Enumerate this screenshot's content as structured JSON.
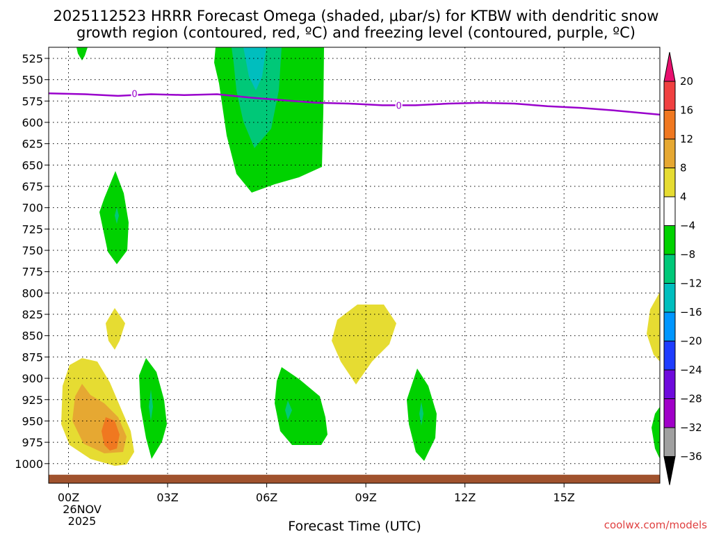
{
  "chart_data": {
    "type": "heatmap",
    "title_line1": "2025112523 HRRR Forecast Omega (shaded, μbar/s) for KTBW with dendritic snow",
    "title_line2": "growth region (contoured, red, ºC) and freezing level (contoured, purple, ºC)",
    "xlabel": "Forecast Time (UTC)",
    "x_ticks": [
      {
        "hour": 0,
        "label": "00Z"
      },
      {
        "hour": 3,
        "label": "03Z"
      },
      {
        "hour": 6,
        "label": "06Z"
      },
      {
        "hour": 9,
        "label": "09Z"
      },
      {
        "hour": 12,
        "label": "12Z"
      },
      {
        "hour": 15,
        "label": "15Z"
      }
    ],
    "date_label_line1": "26NOV",
    "date_label_line2": "2025",
    "y_ticks": [
      525,
      550,
      575,
      600,
      625,
      650,
      675,
      700,
      725,
      750,
      775,
      800,
      825,
      850,
      875,
      900,
      925,
      950,
      975,
      1000
    ],
    "x_range_hours": [
      -0.6,
      17.9
    ],
    "y_range_mb": [
      512,
      1023
    ],
    "colorbar": {
      "labels": [
        "20",
        "16",
        "12",
        "8",
        "4",
        "−4",
        "−8",
        "−12",
        "−16",
        "−20",
        "−24",
        "−28",
        "−32",
        "−36"
      ],
      "colors": [
        "#e8106e",
        "#f04040",
        "#f07820",
        "#e6a832",
        "#e6dc32",
        "#ffffff",
        "#00d200",
        "#00c878",
        "#00bebe",
        "#0096ff",
        "#1e3cff",
        "#6e0adc",
        "#a000c8",
        "#a0a0a0",
        "#000000"
      ]
    },
    "freezing_level": {
      "label": "0",
      "points": [
        [
          -0.6,
          566
        ],
        [
          0.5,
          567
        ],
        [
          1.5,
          569
        ],
        [
          2.5,
          567
        ],
        [
          3.5,
          568
        ],
        [
          4.5,
          567
        ],
        [
          5.5,
          571
        ],
        [
          6.5,
          574
        ],
        [
          7.5,
          577
        ],
        [
          8.5,
          578
        ],
        [
          9.5,
          580
        ],
        [
          10.5,
          580
        ],
        [
          11.5,
          578
        ],
        [
          12.5,
          577
        ],
        [
          13.5,
          578
        ],
        [
          14.5,
          581
        ],
        [
          15.5,
          583
        ],
        [
          16.5,
          586
        ],
        [
          17.9,
          591
        ]
      ],
      "label_positions": [
        [
          2.0,
          566
        ],
        [
          10.0,
          580
        ]
      ]
    },
    "terrain_mb": 1013,
    "credit": "coolwx.com/models"
  }
}
